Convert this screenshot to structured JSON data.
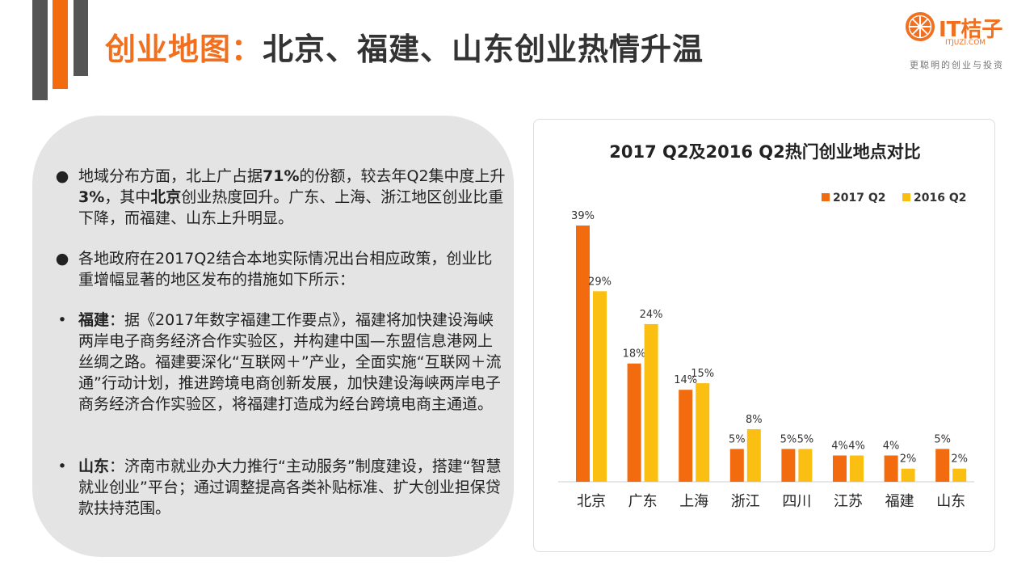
{
  "header": {
    "title_accent": "创业地图：",
    "title_main": "北京、福建、山东创业热情升温"
  },
  "logo": {
    "name": "IT桔子",
    "url": "ITJUZI.COM",
    "slogan": "更聪明的创业与投资"
  },
  "colors": {
    "orange": "#f26b0f",
    "yellow": "#fbbf12",
    "dark": "#555555",
    "panel": "#e4e4e4"
  },
  "panel": {
    "p1": {
      "marker": "●",
      "t1": "地域分布方面，北上广占据",
      "b1": "71%",
      "t2": "的份额，较去年Q2集中度上升",
      "b2": "3%",
      "t3": "，其中",
      "b3": "北京",
      "t4": "创业热度回升。广东、上海、浙江地区创业比重下降，而福建、山东上升明显。"
    },
    "p2": {
      "marker": "●",
      "text": "各地政府在2017Q2结合本地实际情况出台相应政策，创业比重增幅显著的地区发布的措施如下所示："
    },
    "p3": {
      "marker": "•",
      "bold": "福建",
      "text": "：据《2017年数字福建工作要点》，福建将加快建设海峡两岸电子商务经济合作实验区，并构建中国—东盟信息港网上丝绸之路。福建要深化“互联网＋”产业，全面实施“互联网＋流通”行动计划，推进跨境电商创新发展，加快建设海峡两岸电子商务经济合作实验区，将福建打造成为经台跨境电商主通道。"
    },
    "p4": {
      "marker": "•",
      "bold": "山东",
      "text": "：济南市就业办大力推行“主动服务”制度建设，搭建“智慧就业创业”平台；通过调整提高各类补贴标准、扩大创业担保贷款扶持范围。"
    }
  },
  "chart_data": {
    "type": "bar",
    "title": "2017 Q2及2016 Q2热门创业地点对比",
    "categories": [
      "北京",
      "广东",
      "上海",
      "浙江",
      "四川",
      "江苏",
      "福建",
      "山东"
    ],
    "series": [
      {
        "name": "2017 Q2",
        "color": "#f26b0f",
        "values": [
          39,
          18,
          14,
          5,
          5,
          4,
          4,
          5
        ],
        "labels": [
          "39%",
          "18%",
          "14%",
          "5%",
          "5%",
          "4%",
          "4%",
          "5%"
        ]
      },
      {
        "name": "2016 Q2",
        "color": "#fbbf12",
        "values": [
          29,
          24,
          15,
          8,
          5,
          4,
          2,
          2
        ],
        "labels": [
          "29%",
          "24%",
          "15%",
          "8%",
          "5%",
          "4%",
          "2%",
          "2%"
        ]
      }
    ],
    "ylim": [
      0,
      40
    ],
    "legend": "top-right",
    "grid": false,
    "xlabel": "",
    "ylabel": ""
  }
}
